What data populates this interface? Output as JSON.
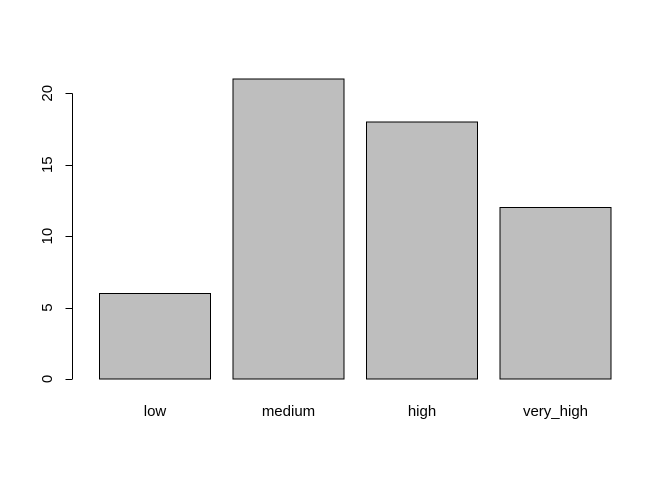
{
  "chart_data": {
    "type": "bar",
    "categories": [
      "low",
      "medium",
      "high",
      "very_high"
    ],
    "values": [
      6,
      21,
      18,
      12
    ],
    "title": "",
    "xlabel": "",
    "ylabel": "",
    "ylim": [
      0,
      21
    ],
    "yticks": [
      0,
      5,
      10,
      15,
      20
    ],
    "ytick_labels": [
      "0",
      "5",
      "10",
      "15",
      "20"
    ],
    "grid": false,
    "colors": {
      "bar_fill": "#bebebe",
      "bar_stroke": "#000000",
      "axis": "#000000",
      "background": "#ffffff"
    }
  }
}
